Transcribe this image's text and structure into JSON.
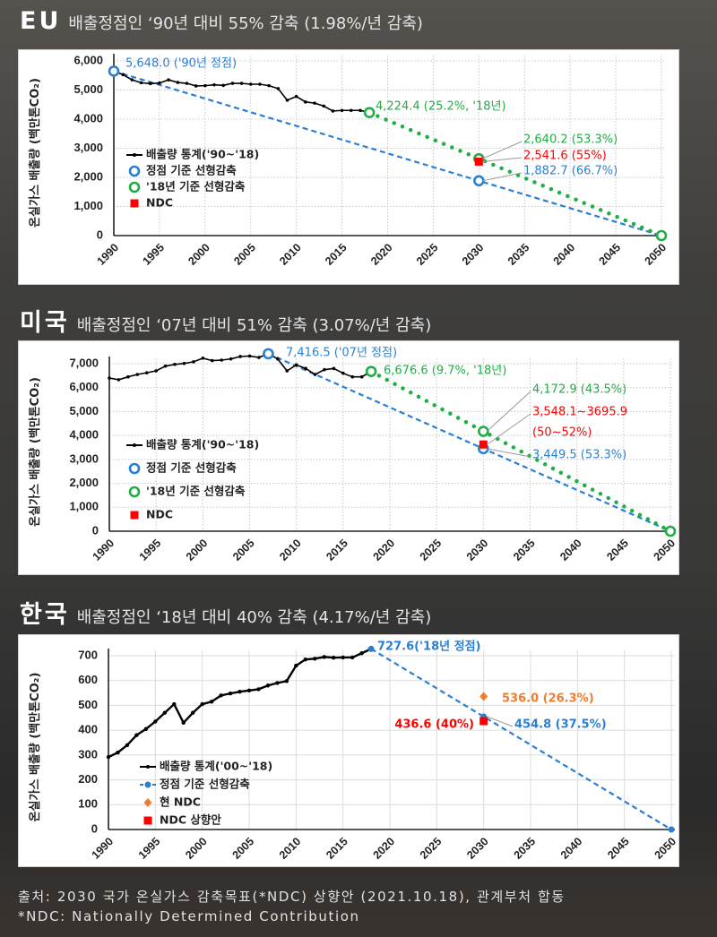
{
  "charts_header": [
    {
      "region": "EU",
      "subtitle": "배출정점인 ‘90년 대비 55% 감축 (1.98%/년 감축)"
    },
    {
      "region": "미국",
      "subtitle": "배출정점인 ‘07년 대비 51% 감축 (3.07%/년 감축)"
    },
    {
      "region": "한국",
      "subtitle": "배출정점인 ‘18년 대비 40% 감축 (4.17%/년 감축)"
    }
  ],
  "footer": {
    "source": "출처: 2030 국가 온실가스 감축목표(*NDC) 상향안 (2021.10.18), 관계부처 합동",
    "note": "*NDC: Nationally Determined Contribution"
  },
  "chart_data": [
    {
      "type": "line",
      "ylabel": "온실가스 배출량 (백만톤CO₂)",
      "xlim": [
        1990,
        2050
      ],
      "ylim": [
        0,
        6000
      ],
      "x_ticks": [
        "1990",
        "1995",
        "2000",
        "2005",
        "2010",
        "2015",
        "2020",
        "2025",
        "2030",
        "2035",
        "2040",
        "2045",
        "2050"
      ],
      "y_ticks": [
        0,
        1000,
        2000,
        3000,
        4000,
        5000,
        6000
      ],
      "y_tick_labels": [
        "0",
        "1,000",
        "2,000",
        "3,000",
        "4,000",
        "5,000",
        "6,000"
      ],
      "grid": "dotted",
      "series": [
        {
          "name": "배출량 통계('90~'18)",
          "style": "line-markers",
          "color": "#000000",
          "x_start": 1990,
          "values": [
            5648,
            5530,
            5350,
            5250,
            5220,
            5240,
            5350,
            5260,
            5230,
            5140,
            5150,
            5180,
            5160,
            5230,
            5230,
            5200,
            5200,
            5150,
            5050,
            4650,
            4780,
            4590,
            4550,
            4450,
            4280,
            4300,
            4300,
            4300,
            4224.4
          ]
        },
        {
          "name": "정점 기준 선형감축",
          "style": "dashed",
          "color": "#2a7fd4",
          "points": [
            [
              1990,
              5648
            ],
            [
              2050,
              0
            ]
          ],
          "markers": [
            [
              1990,
              5648
            ],
            [
              2030,
              1882.7
            ]
          ],
          "marker": "ring"
        },
        {
          "name": "'18년 기준 선형감축",
          "style": "dotted",
          "color": "#1fae45",
          "points": [
            [
              2018,
              4224.4
            ],
            [
              2050,
              0
            ]
          ],
          "markers": [
            [
              2018,
              4224.4
            ],
            [
              2030,
              2640.2
            ],
            [
              2050,
              0
            ]
          ],
          "marker": "ring"
        },
        {
          "name": "NDC",
          "style": "marker",
          "color": "#ff0000",
          "markers": [
            [
              2030,
              2541.6
            ]
          ],
          "marker": "square"
        }
      ],
      "annotations": [
        {
          "text": "5,648.0 ('90년 정점)",
          "color": "#2a7fd4"
        },
        {
          "text": "4,224.4 (25.2%, '18년)",
          "color": "#1fae45"
        },
        {
          "text": "2,640.2 (53.3%)",
          "color": "#1fae45"
        },
        {
          "text": "2,541.6 (55%)",
          "color": "#ff0000"
        },
        {
          "text": "1,882.7 (66.7%)",
          "color": "#2a7fd4"
        }
      ]
    },
    {
      "type": "line",
      "ylabel": "온실가스 배출량 (백만톤CO₂)",
      "xlim": [
        1990,
        2050
      ],
      "ylim": [
        0,
        7000
      ],
      "x_ticks": [
        "1990",
        "1995",
        "2000",
        "2005",
        "2010",
        "2015",
        "2020",
        "2025",
        "2030",
        "2035",
        "2040",
        "2045",
        "2050"
      ],
      "y_ticks": [
        0,
        1000,
        2000,
        3000,
        4000,
        5000,
        6000,
        7000
      ],
      "y_tick_labels": [
        "0",
        "1,000",
        "2,000",
        "3,000",
        "4,000",
        "5,000",
        "6,000",
        "7,000"
      ],
      "grid": "dotted",
      "series": [
        {
          "name": "배출량 통계('90~'18)",
          "style": "line-markers",
          "color": "#000000",
          "x_start": 1990,
          "values": [
            6400,
            6330,
            6450,
            6550,
            6620,
            6700,
            6900,
            6970,
            7010,
            7080,
            7230,
            7130,
            7150,
            7200,
            7300,
            7320,
            7260,
            7416.5,
            7200,
            6700,
            6950,
            6800,
            6550,
            6750,
            6800,
            6600,
            6450,
            6450,
            6676.6
          ]
        },
        {
          "name": "정점 기준 선형감축",
          "style": "dashed",
          "color": "#2a7fd4",
          "points": [
            [
              2007,
              7416.5
            ],
            [
              2050,
              0
            ]
          ],
          "markers": [
            [
              2007,
              7416.5
            ],
            [
              2030,
              3449.5
            ]
          ],
          "marker": "ring"
        },
        {
          "name": "'18년 기준 선형감축",
          "style": "dotted",
          "color": "#1fae45",
          "points": [
            [
              2018,
              6676.6
            ],
            [
              2050,
              0
            ]
          ],
          "markers": [
            [
              2018,
              6676.6
            ],
            [
              2030,
              4172.9
            ],
            [
              2050,
              0
            ]
          ],
          "marker": "ring"
        },
        {
          "name": "NDC",
          "style": "marker",
          "color": "#ff0000",
          "markers": [
            [
              2030,
              3622
            ]
          ],
          "marker": "square"
        }
      ],
      "annotations": [
        {
          "text": "7,416.5 ('07년 정점)",
          "color": "#2a7fd4"
        },
        {
          "text": "6,676.6 (9.7%, '18년)",
          "color": "#1fae45"
        },
        {
          "text": "4,172.9 (43.5%)",
          "color": "#1fae45"
        },
        {
          "text": "3,548.1~3695.9",
          "color": "#ff0000"
        },
        {
          "text": "(50~52%)",
          "color": "#ff0000"
        },
        {
          "text": "3,449.5 (53.3%)",
          "color": "#2a7fd4"
        }
      ]
    },
    {
      "type": "line",
      "ylabel": "온실가스 배출량 (백만톤CO₂)",
      "xlim": [
        1990,
        2050
      ],
      "ylim": [
        0,
        700
      ],
      "x_ticks": [
        "1990",
        "1995",
        "2000",
        "2005",
        "2010",
        "2015",
        "2020",
        "2025",
        "2030",
        "2035",
        "2040",
        "2045",
        "2050"
      ],
      "y_ticks": [
        0,
        100,
        200,
        300,
        400,
        500,
        600,
        700
      ],
      "y_tick_labels": [
        "0",
        "100",
        "200",
        "300",
        "400",
        "500",
        "600",
        "700"
      ],
      "grid": "solid",
      "series": [
        {
          "name": "배출량 통계('00~'18)",
          "style": "line-markers",
          "color": "#000000",
          "x_start": 1990,
          "values": [
            292,
            310,
            340,
            380,
            405,
            435,
            470,
            505,
            430,
            470,
            505,
            515,
            540,
            548,
            555,
            560,
            565,
            580,
            590,
            598,
            660,
            685,
            688,
            695,
            692,
            693,
            693,
            710,
            727.6
          ]
        },
        {
          "name": "정점 기준 선형감축",
          "style": "dashed",
          "color": "#2a7fd4",
          "points": [
            [
              2018,
              727.6
            ],
            [
              2050,
              0
            ]
          ],
          "markers": [
            [
              2018,
              727.6
            ],
            [
              2030,
              454.8
            ],
            [
              2050,
              0
            ]
          ],
          "marker": "dot"
        },
        {
          "name": "현 NDC",
          "style": "marker",
          "color": "#ed7d31",
          "markers": [
            [
              2030,
              536.0
            ]
          ],
          "marker": "diamond"
        },
        {
          "name": "NDC 상향안",
          "style": "marker",
          "color": "#ff0000",
          "markers": [
            [
              2030,
              436.6
            ]
          ],
          "marker": "square"
        }
      ],
      "annotations": [
        {
          "text": "727.6('18년 정점)",
          "color": "#2a7fd4"
        },
        {
          "text": "536.0 (26.3%)",
          "color": "#ed7d31"
        },
        {
          "text": "436.6 (40%)",
          "color": "#ff0000"
        },
        {
          "text": "454.8 (37.5%)",
          "color": "#2a7fd4"
        }
      ]
    }
  ]
}
